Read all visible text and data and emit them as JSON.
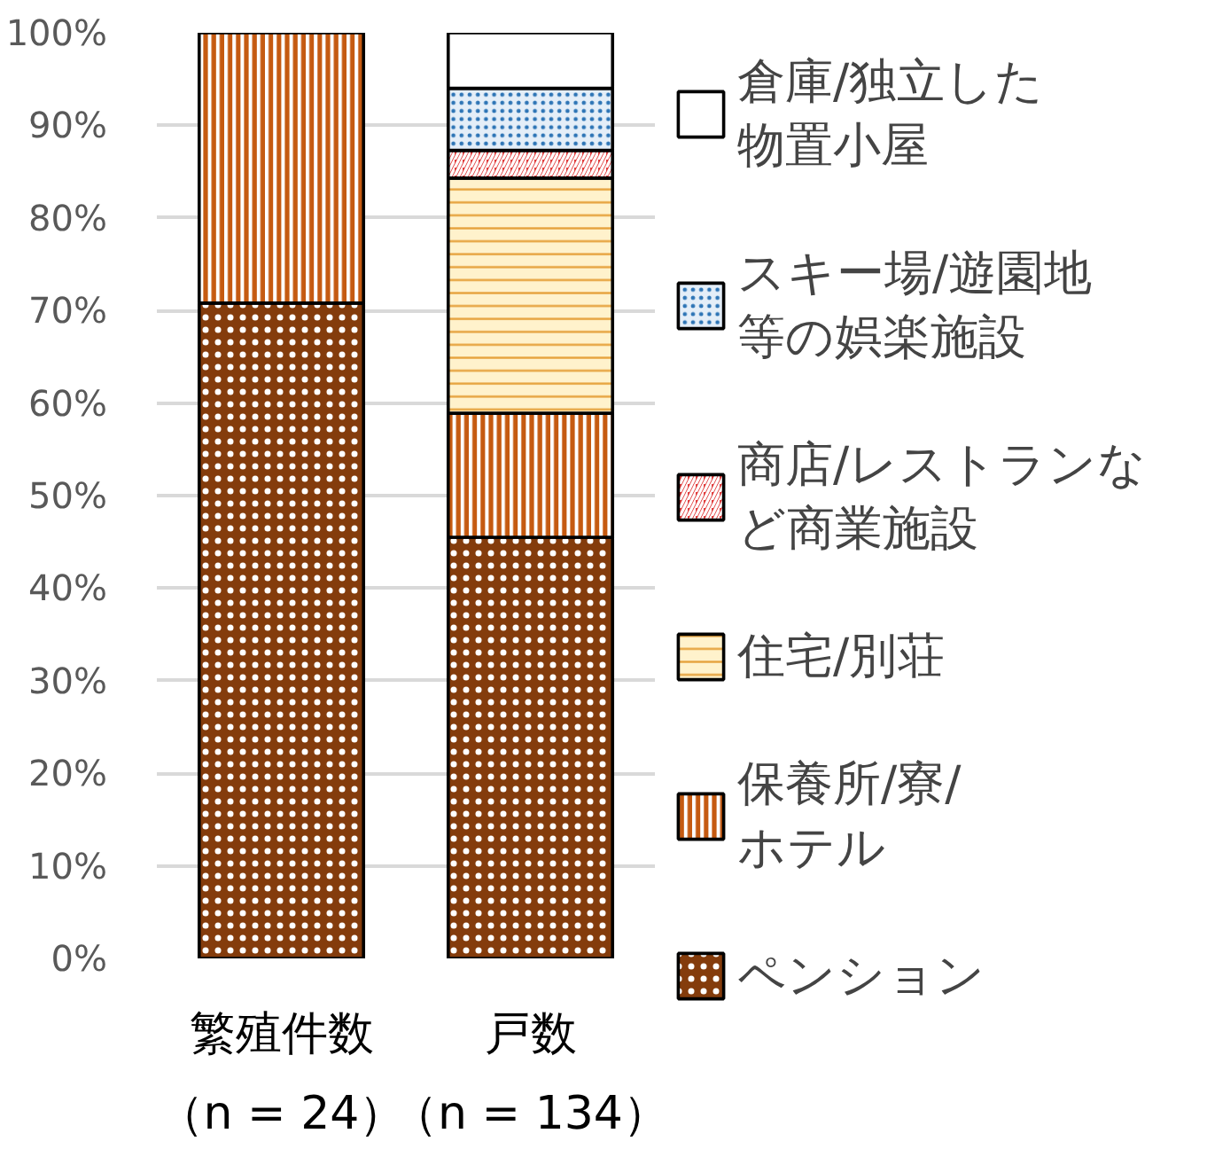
{
  "chart_data": {
    "type": "bar",
    "stacked": true,
    "categories": [
      "繁殖件数（n = 24）",
      "戸数（n = 134）"
    ],
    "series": [
      {
        "name": "ペンション",
        "color": "#843c0c",
        "values": [
          70.8,
          45.5
        ]
      },
      {
        "name": "保養所/寮/ホテル",
        "color": "#c55a11",
        "values": [
          29.2,
          13.4
        ]
      },
      {
        "name": "住宅/別荘",
        "color": "#fff2cc",
        "values": [
          0,
          25.4
        ]
      },
      {
        "name": "商店/レストランなど商業施設",
        "color": "#e03c3c",
        "values": [
          0,
          3.0
        ]
      },
      {
        "name": "スキー場/遊園地等の娯楽施設",
        "color": "#e4eef8",
        "values": [
          0,
          6.7
        ]
      },
      {
        "name": "倉庫/独立した物置小屋",
        "color": "#ffffff",
        "values": [
          0,
          6.0
        ]
      }
    ],
    "ylim": [
      0,
      100
    ],
    "yticks": [
      {
        "value": 0,
        "label": "0%"
      },
      {
        "value": 10,
        "label": "10%"
      },
      {
        "value": 20,
        "label": "20%"
      },
      {
        "value": 30,
        "label": "30%"
      },
      {
        "value": 40,
        "label": "40%"
      },
      {
        "value": 50,
        "label": "50%"
      },
      {
        "value": 60,
        "label": "60%"
      },
      {
        "value": 70,
        "label": "70%"
      },
      {
        "value": 80,
        "label": "80%"
      },
      {
        "value": 90,
        "label": "90%"
      },
      {
        "value": 100,
        "label": "100%"
      }
    ],
    "grid": "y",
    "legend": "right"
  }
}
